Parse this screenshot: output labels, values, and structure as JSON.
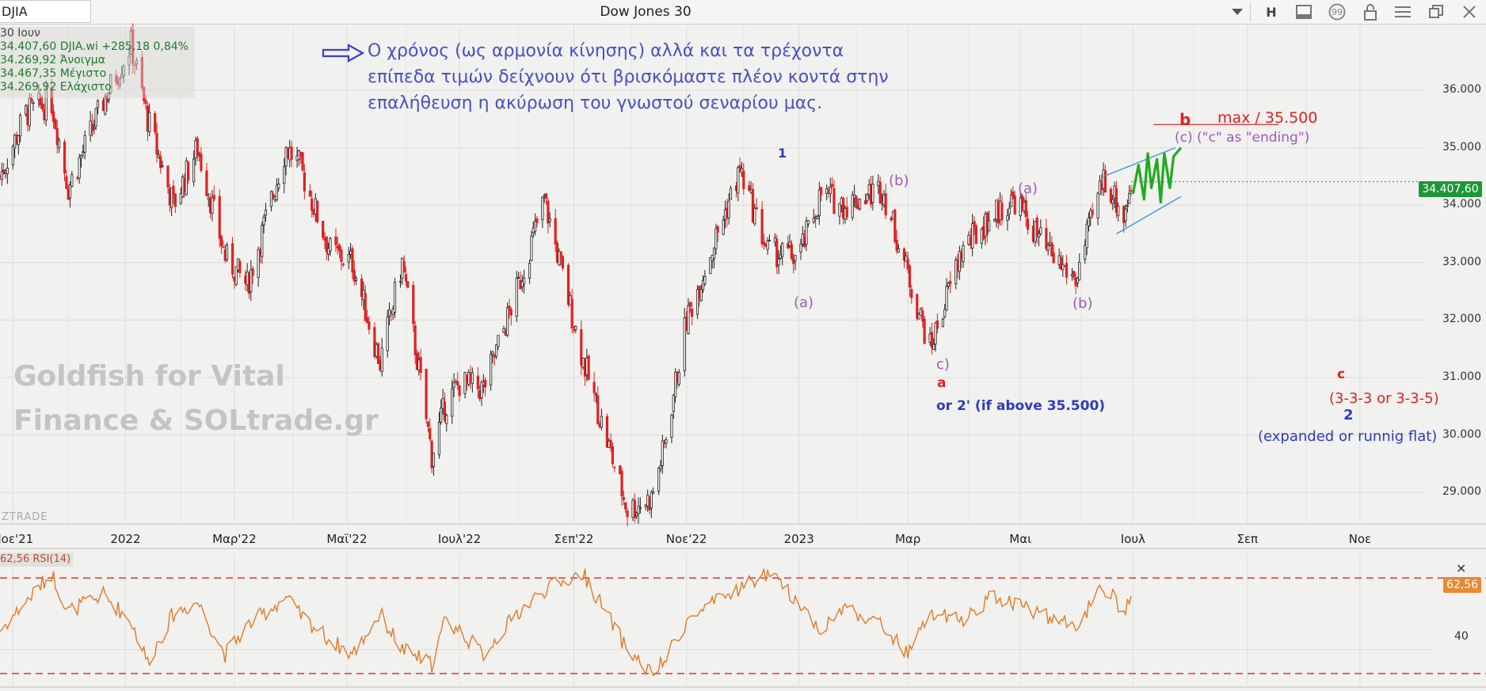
{
  "header": {
    "symbol": "DJIA",
    "title": "Dow Jones 30",
    "buttons": [
      {
        "name": "dropdown-icon",
        "label": ""
      },
      {
        "name": "interval-button",
        "label": "H"
      },
      {
        "name": "chart-window-icon",
        "label": ""
      },
      {
        "name": "comment-icon",
        "label": ""
      },
      {
        "name": "lock-icon",
        "label": ""
      },
      {
        "name": "menu-icon",
        "label": ""
      },
      {
        "name": "restore-icon",
        "label": ""
      },
      {
        "name": "close-icon",
        "label": ""
      }
    ]
  },
  "info_box": {
    "date": "30 Ιουν",
    "last": "34.407,60 DJIA.wi +285,18 0,84%",
    "open": "34.269,92 Άνοιγμα",
    "high": "34.467,35 Μέγιστο",
    "low": "34.269,92 Ελάχιστο"
  },
  "note": {
    "line1": "Ο χρόνος (ως αρμονία κίνησης) αλλά και τα τρέχοντα",
    "line2": "επίπεδα τιμών δείχνουν ότι βρισκόμαστε πλέον κοντά στην",
    "line3": "επαλήθευση η ακύρωση του γνωστού σεναρίου μας."
  },
  "watermark": {
    "line1": "Goldfish for Vital",
    "line2": "Finance & SOLtrade.gr",
    "small": "ZTRADE"
  },
  "annotations": {
    "w1": "1",
    "b1": "(b)",
    "a2": "(a)",
    "a1": "(a)",
    "b2": "(b)",
    "c1": "c)",
    "a_red": "a",
    "or2": "or 2' (if above 35.500)",
    "b_red": "b",
    "max": "max / 35.500",
    "c_ending": "(c) (\"c\" as \"ending\")",
    "c_red": "c",
    "flat_type": "(3-3-3 or 3-3-5)",
    "w2": "2",
    "flat_desc": "(expanded or runnig flat)"
  },
  "colors": {
    "up": "#222222",
    "down": "#dd2222",
    "rsi": "#e07b28",
    "rsi_bands": "#dd2222",
    "wave_blue": "#2f3bbd",
    "wave_purple": "#a05ab5",
    "wave_red": "#dd2222",
    "channel": "#3399ee",
    "projection": "#22aa22",
    "price_badge": "#1e9638"
  },
  "badges": {
    "price": "34.407,60",
    "rsi": "62,56"
  },
  "rsi_panel": {
    "label": "62,56 RSI(14)",
    "close": "×",
    "level_40": "40"
  },
  "chart_data": {
    "type": "candlestick",
    "title": "Dow Jones 30",
    "symbol": "DJIA",
    "ylim": [
      28700,
      36800
    ],
    "y_ticks": [
      {
        "value": 36000,
        "label": "36.000"
      },
      {
        "value": 35000,
        "label": "35.000"
      },
      {
        "value": 34000,
        "label": "34.000"
      },
      {
        "value": 33000,
        "label": "33.000"
      },
      {
        "value": 32000,
        "label": "32.000"
      },
      {
        "value": 31000,
        "label": "31.000"
      },
      {
        "value": 30000,
        "label": "30.000"
      },
      {
        "value": 29000,
        "label": "29.000"
      }
    ],
    "x_ticks": [
      "Νοε'21",
      "2022",
      "Μαρ'22",
      "Μαϊ'22",
      "Ιουλ'22",
      "Σεπ'22",
      "Νοε'22",
      "2023",
      "Μαρ",
      "Μαι",
      "Ιουλ",
      "Σεπ",
      "Νοε"
    ],
    "date_range": [
      "2021-10-25",
      "2023-06-30"
    ],
    "last_close": 34407.6,
    "path_dates": [
      "2021-10-25",
      "2021-11-08",
      "2021-11-22",
      "2021-12-01",
      "2021-12-20",
      "2022-01-04",
      "2022-01-13",
      "2022-01-27",
      "2022-02-09",
      "2022-02-24",
      "2022-03-08",
      "2022-03-29",
      "2022-04-05",
      "2022-04-22",
      "2022-05-04",
      "2022-05-19",
      "2022-05-31",
      "2022-06-16",
      "2022-06-23",
      "2022-07-01",
      "2022-07-14",
      "2022-08-01",
      "2022-08-16",
      "2022-09-06",
      "2022-09-30",
      "2022-10-13",
      "2022-10-20",
      "2022-11-01",
      "2022-11-30",
      "2022-12-15",
      "2023-01-01",
      "2023-01-13",
      "2023-01-26",
      "2023-02-15",
      "2023-03-01",
      "2023-03-13",
      "2023-03-30",
      "2023-04-15",
      "2023-04-28",
      "2023-05-15",
      "2023-05-31",
      "2023-06-15",
      "2023-06-20",
      "2023-06-26",
      "2023-06-30"
    ],
    "path_closes": [
      34500,
      35600,
      35800,
      34300,
      35800,
      36800,
      35500,
      34000,
      35000,
      33100,
      32600,
      35000,
      34700,
      33200,
      33000,
      31250,
      33000,
      29650,
      30500,
      30900,
      30800,
      32500,
      34100,
      31300,
      28700,
      28900,
      29800,
      32000,
      34600,
      33200,
      33100,
      34200,
      34000,
      34300,
      32800,
      31500,
      33200,
      33800,
      34100,
      33200,
      32700,
      34500,
      34200,
      33800,
      34407.6
    ],
    "rsi": {
      "ylim": [
        25,
        80
      ],
      "upper_band": 70,
      "lower_band": 30,
      "last": 62.56,
      "path_values": [
        48,
        60,
        72,
        56,
        63,
        52,
        35,
        55,
        60,
        38,
        50,
        62,
        55,
        44,
        38,
        55,
        40,
        34,
        52,
        48,
        38,
        55,
        65,
        72,
        40,
        30,
        35,
        52,
        66,
        72,
        60,
        48,
        58,
        50,
        38,
        55,
        52,
        62,
        60,
        54,
        50,
        66,
        62,
        55,
        62.56
      ]
    },
    "channel": {
      "upper": [
        [
          "2023-06-15",
          34500
        ],
        [
          "2023-07-24",
          35000
        ]
      ],
      "lower": [
        [
          "2023-06-22",
          33500
        ],
        [
          "2023-07-27",
          34150
        ]
      ]
    },
    "projection": {
      "dates": [
        "2023-07-01",
        "2023-07-04",
        "2023-07-07",
        "2023-07-09",
        "2023-07-11",
        "2023-07-14",
        "2023-07-16",
        "2023-07-18",
        "2023-07-21",
        "2023-07-23",
        "2023-07-27"
      ],
      "values": [
        34200,
        34700,
        34100,
        34900,
        34300,
        34800,
        34050,
        34900,
        34300,
        34850,
        35000
      ]
    },
    "max_level": 35500
  }
}
